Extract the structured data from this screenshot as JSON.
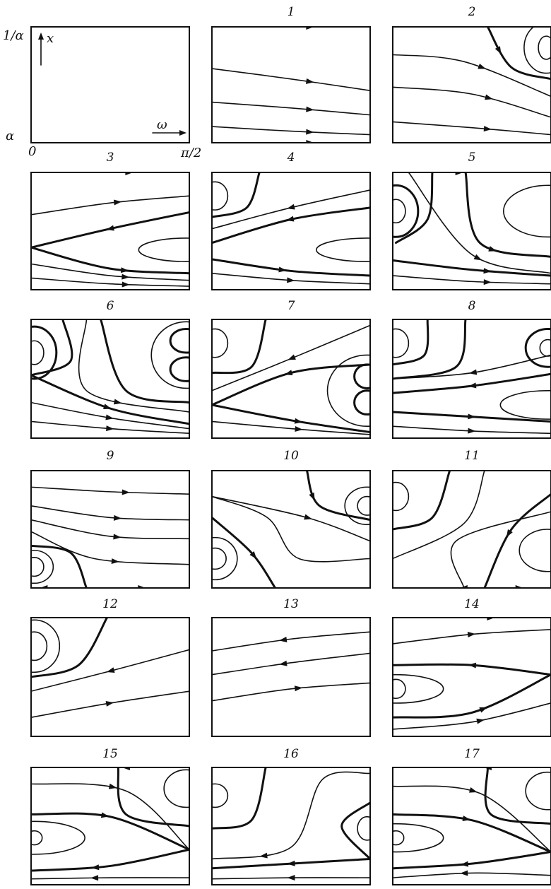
{
  "figure": {
    "panel_labels": [
      "1",
      "2",
      "3",
      "4",
      "5",
      "6",
      "7",
      "8",
      "9",
      "10",
      "11",
      "12",
      "13",
      "14",
      "15",
      "16",
      "17"
    ],
    "axis_labels": {
      "top_left": "1/α",
      "bottom_left": "α",
      "x_origin": "0",
      "x_end": "π/2",
      "x_var": "ω",
      "y_var": "x"
    }
  }
}
